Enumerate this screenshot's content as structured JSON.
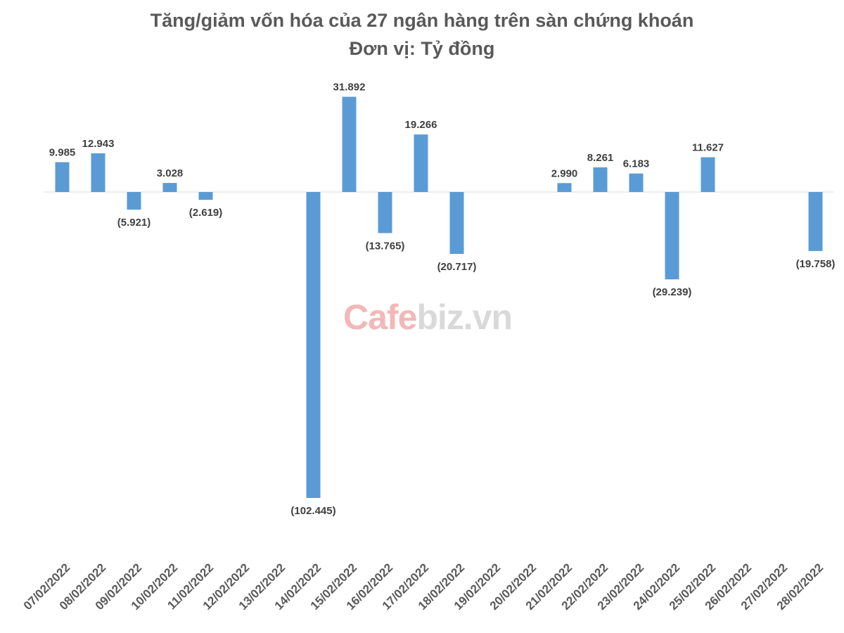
{
  "chart_data": {
    "type": "bar",
    "title": "Tăng/giảm vốn hóa của 27 ngân hàng trên sàn chứng khoán",
    "subtitle": "Đơn vị: Tỷ đồng",
    "categories": [
      "07/02/2022",
      "08/02/2022",
      "09/02/2022",
      "10/02/2022",
      "11/02/2022",
      "12/02/2022",
      "13/02/2022",
      "14/02/2022",
      "15/02/2022",
      "16/02/2022",
      "17/02/2022",
      "18/02/2022",
      "19/02/2022",
      "20/02/2022",
      "21/02/2022",
      "22/02/2022",
      "23/02/2022",
      "24/02/2022",
      "25/02/2022",
      "26/02/2022",
      "27/02/2022",
      "28/02/2022"
    ],
    "values": [
      9985,
      12943,
      -5921,
      3028,
      -2619,
      null,
      null,
      -102445,
      31892,
      -13765,
      19266,
      -20717,
      null,
      null,
      2990,
      8261,
      6183,
      -29239,
      11627,
      null,
      null,
      -19758
    ],
    "data_labels": [
      "9.985",
      "12.943",
      "(5.921)",
      "3.028",
      "(2.619)",
      "",
      "",
      "(102.445)",
      "31.892",
      "(13.765)",
      "19.266",
      "(20.717)",
      "",
      "",
      "2.990",
      "8.261",
      "6.183",
      "(29.239)",
      "11.627",
      "",
      "",
      "(19.758)"
    ],
    "xlabel": "",
    "ylabel": "",
    "grid": false,
    "legend": "none",
    "bar_color": "#5b9bd5",
    "watermark": "Cafebiz.vn"
  }
}
